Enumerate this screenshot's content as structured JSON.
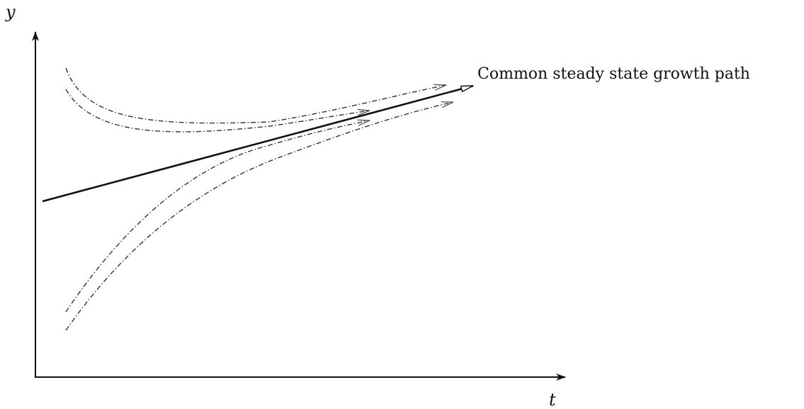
{
  "axes": {
    "x_label": "t",
    "y_label": "y"
  },
  "steady_path": {
    "label": "Common steady state growth path"
  },
  "transition_paths": [
    {
      "start": "above",
      "order": 1
    },
    {
      "start": "above",
      "order": 2
    },
    {
      "start": "below",
      "order": 1
    },
    {
      "start": "below",
      "order": 2
    }
  ]
}
